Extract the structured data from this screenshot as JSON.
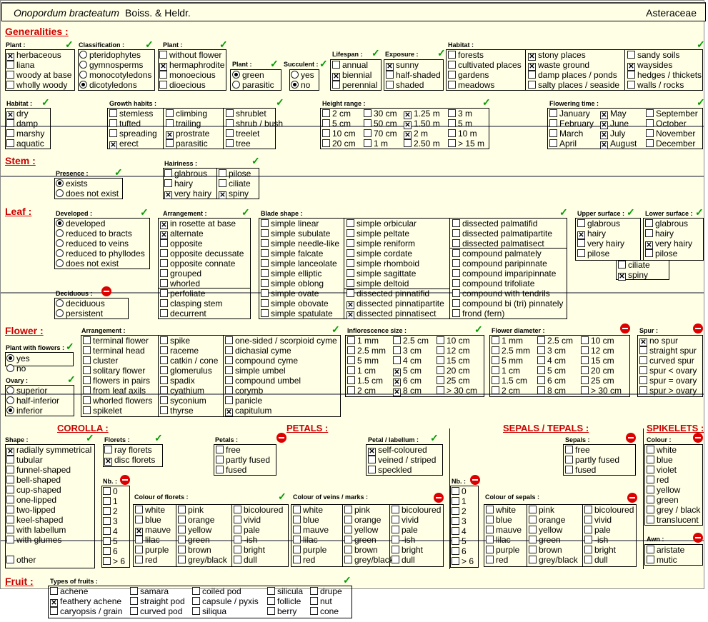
{
  "header": {
    "species": "Onopordum bracteatum",
    "author": "Boiss. & Heldr.",
    "family": "Asteraceae"
  },
  "sections": {
    "generalities": "Generalities :",
    "stem": "Stem :",
    "leaf": "Leaf :",
    "flower": "Flower :",
    "fruit": "Fruit :",
    "corolla": "COROLLA :",
    "petals": "PETALS :",
    "sepals": "SEPALS / TEPALS :",
    "spikelets": "SPIKELETS :"
  },
  "labels": {
    "g_plant": "Plant :",
    "g_class": "Classification :",
    "g_plant2": "Plant :",
    "g_plant3": "Plant :",
    "g_succ": "Succulent :",
    "g_life": "Lifespan :",
    "g_expo": "Exposure :",
    "g_hab": "Habitat :",
    "g_hab2": "Habitat :",
    "g_growth": "Growth habits :",
    "g_height": "Height range :",
    "g_flow": "Flowering time :",
    "s_pres": "Presence :",
    "s_hair": "Hairiness :",
    "l_dev": "Developed :",
    "l_decid": "Deciduous :",
    "l_arr": "Arrangement :",
    "l_blade": "Blade shape :",
    "l_upper": "Upper surface :",
    "l_lower": "Lower surface :",
    "f_pwf": "Plant with flowers :",
    "f_ovary": "Ovary :",
    "f_arr": "Arrangement :",
    "f_infl": "Inflorescence size :",
    "f_diam": "Flower diameter :",
    "f_spur": "Spur :",
    "c_shape": "Shape :",
    "c_florets": "Florets :",
    "c_nb": "Nb. :",
    "c_col": "Colour of florets :",
    "p_petals": "Petals :",
    "p_lab": "Petal / labellum :",
    "p_veins": "Colour of veins / marks :",
    "sp_nb": "Nb. :",
    "sp_sepals": "Sepals :",
    "sp_col": "Colour of sepals :",
    "sk_col": "Colour :",
    "sk_awn": "Awn :",
    "fr_types": "Types of fruits :"
  },
  "items": {
    "g_plant": [
      [
        "herbaceous",
        1
      ],
      [
        "liana",
        0
      ],
      [
        "woody at base",
        0
      ],
      [
        "wholly woody",
        0
      ]
    ],
    "g_class": [
      [
        "pteridophytes",
        0
      ],
      [
        "gymnosperms",
        0
      ],
      [
        "monocotyledons",
        0
      ],
      [
        "dicotyledons",
        1
      ]
    ],
    "g_plant2": [
      [
        "without flower",
        0
      ],
      [
        "hermaphrodite",
        1
      ],
      [
        "monoecious",
        0
      ],
      [
        "dioecious",
        0
      ]
    ],
    "g_plant3": [
      [
        "green",
        1
      ],
      [
        "parasitic",
        0
      ]
    ],
    "g_succ": [
      [
        "yes",
        0
      ],
      [
        "no",
        1
      ]
    ],
    "g_life": [
      [
        "annual",
        0
      ],
      [
        "biennial",
        1
      ],
      [
        "perennial",
        0
      ]
    ],
    "g_expo": [
      [
        "sunny",
        1
      ],
      [
        "half-shaded",
        0
      ],
      [
        "shaded",
        0
      ]
    ],
    "g_hab_a": [
      [
        "forests",
        0
      ],
      [
        "cultivated places",
        0
      ],
      [
        "gardens",
        0
      ],
      [
        "meadows",
        0
      ]
    ],
    "g_hab_b": [
      [
        "stony places",
        1
      ],
      [
        "waste ground",
        1
      ],
      [
        "damp places / ponds",
        0
      ],
      [
        "salty places / seaside",
        0
      ]
    ],
    "g_hab_c": [
      [
        "sandy soils",
        0
      ],
      [
        "waysides",
        1
      ],
      [
        "hedges / thickets",
        0
      ],
      [
        "walls / rocks",
        0
      ]
    ],
    "g_hab2": [
      [
        "dry",
        1
      ],
      [
        "damp",
        0
      ],
      [
        "marshy",
        0
      ],
      [
        "aquatic",
        0
      ]
    ],
    "g_growth_a": [
      [
        "stemless",
        0
      ],
      [
        "tufted",
        0
      ],
      [
        "spreading",
        0
      ],
      [
        "erect",
        1
      ]
    ],
    "g_growth_b": [
      [
        "climbing",
        0
      ],
      [
        "trailing",
        0
      ],
      [
        "prostrate",
        1
      ],
      [
        "parasitic",
        0
      ]
    ],
    "g_growth_c": [
      [
        "shrublet",
        0
      ],
      [
        "shrub / bush",
        0
      ],
      [
        "treelet",
        0
      ],
      [
        "tree",
        0
      ]
    ],
    "g_height_a": [
      [
        "2 cm",
        0
      ],
      [
        "5 cm",
        0
      ],
      [
        "10 cm",
        0
      ],
      [
        "20 cm",
        0
      ]
    ],
    "g_height_b": [
      [
        "30 cm",
        0
      ],
      [
        "50 cm",
        0
      ],
      [
        "70 cm",
        0
      ],
      [
        "1 m",
        0
      ]
    ],
    "g_height_c": [
      [
        "1.25 m",
        1
      ],
      [
        "1.50 m",
        1
      ],
      [
        "2 m",
        1
      ],
      [
        "2.50 m",
        0
      ]
    ],
    "g_height_d": [
      [
        "3 m",
        0
      ],
      [
        "5 m",
        0
      ],
      [
        "10 m",
        0
      ],
      [
        "> 15 m",
        0
      ]
    ],
    "g_flow_a": [
      [
        "January",
        0
      ],
      [
        "February",
        0
      ],
      [
        "March",
        0
      ],
      [
        "April",
        0
      ]
    ],
    "g_flow_b": [
      [
        "May",
        1
      ],
      [
        "June",
        1
      ],
      [
        "July",
        1
      ],
      [
        "August",
        1
      ]
    ],
    "g_flow_c": [
      [
        "September",
        0
      ],
      [
        "October",
        0
      ],
      [
        "November",
        0
      ],
      [
        "December",
        0
      ]
    ],
    "s_pres": [
      [
        "exists",
        1
      ],
      [
        "does not exist",
        0
      ]
    ],
    "s_hair_a": [
      [
        "glabrous",
        0
      ],
      [
        "hairy",
        0
      ],
      [
        "very hairy",
        1
      ]
    ],
    "s_hair_b": [
      [
        "pilose",
        0
      ],
      [
        "ciliate",
        0
      ],
      [
        "spiny",
        1
      ]
    ],
    "l_dev": [
      [
        "developed",
        1
      ],
      [
        "reduced to bracts",
        0
      ],
      [
        "reduced to veins",
        0
      ],
      [
        "reduced to phyllodes",
        0
      ],
      [
        "does not exist",
        0
      ]
    ],
    "l_decid": [
      [
        "deciduous",
        0
      ],
      [
        "persistent",
        0
      ]
    ],
    "l_arr_a": [
      [
        "in rosette at base",
        1
      ],
      [
        "alternate",
        1
      ],
      [
        "opposite",
        0
      ],
      [
        "opposite decussate",
        0
      ],
      [
        "opposite connate",
        0
      ],
      [
        "grouped",
        0
      ],
      [
        "whorled",
        0
      ]
    ],
    "l_arr_b": [
      [
        "perfoliate",
        0
      ],
      [
        "clasping stem",
        0
      ],
      [
        "decurrent",
        0
      ]
    ],
    "l_blade_a": [
      [
        "simple linear",
        0
      ],
      [
        "simple subulate",
        0
      ],
      [
        "simple needle-like",
        0
      ],
      [
        "simple falcate",
        0
      ],
      [
        "simple lanceolate",
        0
      ],
      [
        "simple elliptic",
        0
      ],
      [
        "simple oblong",
        0
      ],
      [
        "simple ovate",
        0
      ],
      [
        "simple obovate",
        0
      ],
      [
        "simple spatulate",
        0
      ]
    ],
    "l_blade_b": [
      [
        "simple orbicular",
        0
      ],
      [
        "simple peltate",
        0
      ],
      [
        "simple reniform",
        0
      ],
      [
        "simple cordate",
        0
      ],
      [
        "simple rhomboid",
        0
      ],
      [
        "simple sagittate",
        0
      ],
      [
        "simple deltoid",
        0
      ]
    ],
    "l_blade_c": [
      [
        "dissected pinnatifid",
        0
      ],
      [
        "dissected pinnatipartite",
        1
      ],
      [
        "dissected pinnatisect",
        1
      ]
    ],
    "l_blade_d": [
      [
        "dissected palmatifid",
        0
      ],
      [
        "dissected palmatipartite",
        0
      ],
      [
        "dissected palmatisect",
        0
      ]
    ],
    "l_blade_e": [
      [
        "compound palmately",
        0
      ],
      [
        "compound paripinnate",
        0
      ],
      [
        "compound imparipinnate",
        0
      ],
      [
        "compound trifoliate",
        0
      ],
      [
        "compound with tendrils",
        0
      ],
      [
        "compound bi (tri) pinnately",
        0
      ],
      [
        "frond  (fern)",
        0
      ]
    ],
    "l_upper": [
      [
        "glabrous",
        0
      ],
      [
        "hairy",
        1
      ],
      [
        "very hairy",
        0
      ],
      [
        "pilose",
        0
      ]
    ],
    "l_lower": [
      [
        "glabrous",
        0
      ],
      [
        "hairy",
        0
      ],
      [
        "very hairy",
        1
      ],
      [
        "pilose",
        0
      ]
    ],
    "l_shared": [
      [
        "ciliate",
        0
      ],
      [
        "spiny",
        1
      ]
    ],
    "f_pwf": [
      [
        "yes",
        1
      ],
      [
        "no",
        0
      ]
    ],
    "f_ovary": [
      [
        "superior",
        0
      ],
      [
        "half-inferior",
        0
      ],
      [
        "inferior",
        1
      ]
    ],
    "f_arr_a": [
      [
        "terminal flower",
        0
      ],
      [
        "terminal head",
        0
      ],
      [
        "cluster",
        0
      ],
      [
        "solitary flower",
        0
      ],
      [
        "flowers in pairs",
        0
      ],
      [
        "from leaf axils",
        0
      ],
      [
        "whorled flowers",
        0
      ],
      [
        "spikelet",
        0
      ]
    ],
    "f_arr_b": [
      [
        "spike",
        0
      ],
      [
        "raceme",
        0
      ],
      [
        "catkin / cone",
        0
      ],
      [
        "glomerulus",
        0
      ],
      [
        "spadix",
        0
      ],
      [
        "cyathium",
        0
      ],
      [
        "syconium",
        0
      ],
      [
        "thyrse",
        0
      ]
    ],
    "f_arr_c": [
      [
        "one-sided / scorpioid cyme",
        0
      ],
      [
        "dichasial cyme",
        0
      ],
      [
        "compound cyme",
        0
      ],
      [
        "simple umbel",
        0
      ],
      [
        "compound umbel",
        0
      ],
      [
        "corymb",
        0
      ],
      [
        "panicle",
        0
      ],
      [
        "capitulum",
        1
      ]
    ],
    "f_infl_a": [
      [
        "1 mm",
        0
      ],
      [
        "2.5 mm",
        0
      ],
      [
        "5 mm",
        0
      ],
      [
        "1 cm",
        0
      ],
      [
        "1.5 cm",
        0
      ],
      [
        "2 cm",
        0
      ]
    ],
    "f_infl_b": [
      [
        "2.5 cm",
        0
      ],
      [
        "3 cm",
        0
      ],
      [
        "4 cm",
        0
      ],
      [
        "5 cm",
        1
      ],
      [
        "6 cm",
        1
      ],
      [
        "8 cm",
        1
      ]
    ],
    "f_infl_c": [
      [
        "10 cm",
        0
      ],
      [
        "12 cm",
        0
      ],
      [
        "15 cm",
        0
      ],
      [
        "20 cm",
        0
      ],
      [
        "25 cm",
        0
      ],
      [
        "> 30 cm",
        0
      ]
    ],
    "f_diam_a": [
      [
        "1 mm",
        0
      ],
      [
        "2.5 mm",
        0
      ],
      [
        "5 mm",
        0
      ],
      [
        "1 cm",
        0
      ],
      [
        "1.5 cm",
        0
      ],
      [
        "2 cm",
        0
      ]
    ],
    "f_diam_b": [
      [
        "2.5 cm",
        0
      ],
      [
        "3 cm",
        0
      ],
      [
        "4 cm",
        0
      ],
      [
        "5 cm",
        0
      ],
      [
        "6 cm",
        0
      ],
      [
        "8 cm",
        0
      ]
    ],
    "f_diam_c": [
      [
        "10 cm",
        0
      ],
      [
        "12 cm",
        0
      ],
      [
        "15 cm",
        0
      ],
      [
        "20 cm",
        0
      ],
      [
        "25 cm",
        0
      ],
      [
        "> 30 cm",
        0
      ]
    ],
    "f_spur": [
      [
        "no spur",
        1
      ],
      [
        "straight spur",
        0
      ],
      [
        "curved spur",
        0
      ],
      [
        "spur < ovary",
        0
      ],
      [
        "spur = ovary",
        0
      ],
      [
        "spur > ovary",
        0
      ]
    ],
    "c_shape": [
      [
        "radially symmetrical",
        1
      ],
      [
        "tubular",
        0
      ],
      [
        "funnel-shaped",
        0
      ],
      [
        "bell-shaped",
        0
      ],
      [
        "cup-shaped",
        0
      ],
      [
        "one-lipped",
        0
      ],
      [
        "two-lipped",
        0
      ],
      [
        "keel-shaped",
        0
      ],
      [
        "with labellum",
        0
      ],
      [
        "with glumes",
        0
      ]
    ],
    "c_other": [
      [
        "other",
        0
      ]
    ],
    "c_florets": [
      [
        "ray florets",
        0
      ],
      [
        "disc florets",
        1
      ]
    ],
    "c_nb": [
      [
        "0",
        0
      ],
      [
        "1",
        0
      ],
      [
        "2",
        0
      ],
      [
        "3",
        0
      ],
      [
        "4",
        0
      ],
      [
        "5",
        0
      ],
      [
        "6",
        0
      ],
      [
        "> 6",
        0
      ]
    ],
    "c_col_a": [
      [
        "white",
        0
      ],
      [
        "blue",
        0
      ],
      [
        "mauve",
        1
      ],
      [
        "lilac",
        0
      ],
      [
        "purple",
        0
      ],
      [
        "red",
        0
      ]
    ],
    "c_col_b": [
      [
        "pink",
        0
      ],
      [
        "orange",
        0
      ],
      [
        "yellow",
        0
      ],
      [
        "green",
        0
      ],
      [
        "brown",
        0
      ],
      [
        "grey/black",
        0
      ]
    ],
    "c_col_c": [
      [
        "bicoloured",
        0
      ],
      [
        "vivid",
        0
      ],
      [
        "pale",
        0
      ],
      [
        "-ish",
        0
      ],
      [
        "bright",
        0
      ],
      [
        "dull",
        0
      ]
    ],
    "p_petals": [
      [
        "free",
        0
      ],
      [
        "partly fused",
        0
      ],
      [
        "fused",
        0
      ]
    ],
    "p_lab": [
      [
        "self-coloured",
        1
      ],
      [
        "veined / striped",
        0
      ],
      [
        "speckled",
        0
      ]
    ],
    "p_veins_a": [
      [
        "white",
        0
      ],
      [
        "blue",
        0
      ],
      [
        "mauve",
        0
      ],
      [
        "lilac",
        0
      ],
      [
        "purple",
        0
      ],
      [
        "red",
        0
      ]
    ],
    "p_veins_b": [
      [
        "pink",
        0
      ],
      [
        "orange",
        0
      ],
      [
        "yellow",
        0
      ],
      [
        "green",
        0
      ],
      [
        "brown",
        0
      ],
      [
        "grey/black",
        0
      ]
    ],
    "p_veins_c": [
      [
        "bicoloured",
        0
      ],
      [
        "vivid",
        0
      ],
      [
        "pale",
        0
      ],
      [
        "-ish",
        0
      ],
      [
        "bright",
        0
      ],
      [
        "dull",
        0
      ]
    ],
    "sp_nb": [
      [
        "0",
        0
      ],
      [
        "1",
        0
      ],
      [
        "2",
        0
      ],
      [
        "3",
        0
      ],
      [
        "4",
        0
      ],
      [
        "5",
        0
      ],
      [
        "6",
        0
      ],
      [
        "> 6",
        0
      ]
    ],
    "sp_sepals": [
      [
        "free",
        0
      ],
      [
        "partly fused",
        0
      ],
      [
        "fused",
        0
      ]
    ],
    "sp_col_a": [
      [
        "white",
        0
      ],
      [
        "blue",
        0
      ],
      [
        "mauve",
        0
      ],
      [
        "lilac",
        0
      ],
      [
        "purple",
        0
      ],
      [
        "red",
        0
      ]
    ],
    "sp_col_b": [
      [
        "pink",
        0
      ],
      [
        "orange",
        0
      ],
      [
        "yellow",
        0
      ],
      [
        "green",
        0
      ],
      [
        "brown",
        0
      ],
      [
        "grey/black",
        0
      ]
    ],
    "sp_col_c": [
      [
        "bicoloured",
        0
      ],
      [
        "vivid",
        0
      ],
      [
        "pale",
        0
      ],
      [
        "-ish",
        0
      ],
      [
        "bright",
        0
      ],
      [
        "dull",
        0
      ]
    ],
    "sk_col": [
      [
        "white",
        0
      ],
      [
        "blue",
        0
      ],
      [
        "violet",
        0
      ],
      [
        "red",
        0
      ],
      [
        "yellow",
        0
      ],
      [
        "green",
        0
      ],
      [
        "grey / black",
        0
      ],
      [
        "translucent",
        0
      ]
    ],
    "sk_awn": [
      [
        "aristate",
        0
      ],
      [
        "mutic",
        0
      ]
    ],
    "fr_a": [
      [
        "achene",
        0
      ],
      [
        "feathery achene",
        1
      ],
      [
        "caryopsis / grain",
        0
      ]
    ],
    "fr_b": [
      [
        "samara",
        0
      ],
      [
        "straight pod",
        0
      ],
      [
        "curved pod",
        0
      ]
    ],
    "fr_c": [
      [
        "coiled pod",
        0
      ],
      [
        "capsule / pyxis",
        0
      ],
      [
        "siliqua",
        0
      ]
    ],
    "fr_d": [
      [
        "silicula",
        0
      ],
      [
        "follicle",
        0
      ],
      [
        "berry",
        0
      ]
    ],
    "fr_e": [
      [
        "drupe",
        0
      ],
      [
        "nut",
        0
      ],
      [
        "cone",
        0
      ]
    ]
  }
}
